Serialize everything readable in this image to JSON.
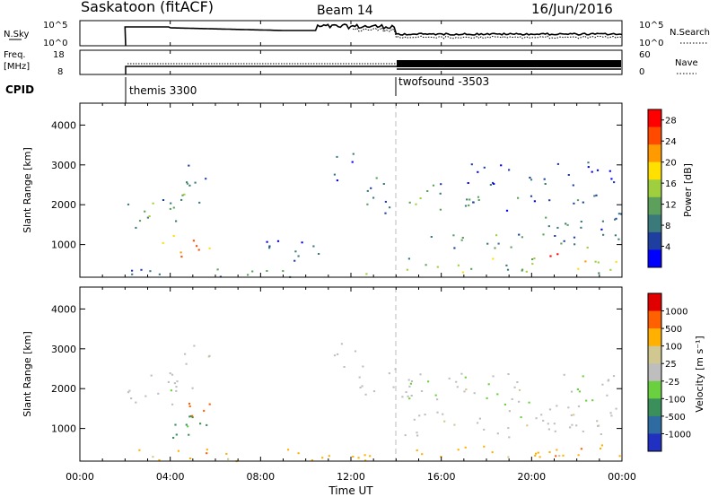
{
  "header": {
    "site": "Saskatoon (fitACF)",
    "beam": "Beam 14",
    "date": "16/Jun/2016"
  },
  "noise_panel": {
    "left_label": "N.Sky",
    "left_ticks": [
      "10^5",
      "10^0"
    ],
    "right_ticks": [
      "10^5",
      "10^0"
    ],
    "right_label": "N.Search"
  },
  "freq_panel": {
    "left_label_line1": "Freq.",
    "left_label_line2": "[MHz]",
    "left_ticks": [
      "18",
      "8"
    ],
    "right_ticks": [
      "60",
      "0"
    ],
    "right_label": "Nave"
  },
  "cpid": {
    "label": "CPID",
    "programs": [
      {
        "name": "themis 3300",
        "start_hour": 2.0
      },
      {
        "name": "twofsound -3503",
        "start_hour": 14.0
      }
    ]
  },
  "x_axis": {
    "ticks": [
      "00:00",
      "04:00",
      "08:00",
      "12:00",
      "16:00",
      "20:00",
      "00:00"
    ],
    "title": "Time UT"
  },
  "colors": {
    "power": [
      "#0000ff",
      "#1f3fa0",
      "#3a7a7a",
      "#5ca05c",
      "#9fcf3f",
      "#ffe000",
      "#ff9a00",
      "#ff4a00",
      "#ff0000"
    ],
    "velocity": [
      "#2030c0",
      "#2e6ba0",
      "#3a8f5a",
      "#6ad040",
      "#bebebe",
      "#d0c890",
      "#ffb000",
      "#ff6000",
      "#e00000"
    ]
  },
  "chart_data": [
    {
      "type": "heatmap",
      "panel": "power",
      "ylabel": "Slant Range [km]",
      "yticks": [
        "1000",
        "2000",
        "3000",
        "4000"
      ],
      "ylim": [
        180,
        4550
      ],
      "xlim_hours": [
        0,
        24
      ],
      "colorbar": {
        "label": "Power [dB]",
        "ticks": [
          "4",
          "8",
          "12",
          "16",
          "20",
          "24",
          "28"
        ],
        "range": [
          0,
          30
        ]
      },
      "regions": [
        {
          "t0": 2.0,
          "t1": 4.3,
          "r0": 1400,
          "r1": 2100,
          "level": 12
        },
        {
          "t0": 3.0,
          "t1": 4.8,
          "r0": 1900,
          "r1": 2400,
          "level": 10
        },
        {
          "t0": 4.0,
          "t1": 5.3,
          "r0": 2000,
          "r1": 2600,
          "level": 8
        },
        {
          "t0": 4.6,
          "t1": 5.9,
          "r0": 2500,
          "r1": 3100,
          "level": 6
        },
        {
          "t0": 3.4,
          "t1": 5.8,
          "r0": 700,
          "r1": 1300,
          "level": 22
        },
        {
          "t0": 2.2,
          "t1": 14.0,
          "r0": 200,
          "r1": 400,
          "level": 10
        },
        {
          "t0": 7.8,
          "t1": 10.8,
          "r0": 600,
          "r1": 1200,
          "level": 6
        },
        {
          "t0": 11.0,
          "t1": 12.2,
          "r0": 2500,
          "r1": 3300,
          "level": 6
        },
        {
          "t0": 12.2,
          "t1": 14.0,
          "r0": 1800,
          "r1": 2700,
          "level": 8
        },
        {
          "t0": 14.2,
          "t1": 16.0,
          "r0": 1800,
          "r1": 2600,
          "level": 10
        },
        {
          "t0": 14.2,
          "t1": 24.0,
          "r0": 900,
          "r1": 1300,
          "level": 10
        },
        {
          "t0": 14.2,
          "t1": 24.0,
          "r0": 300,
          "r1": 700,
          "level": 14
        },
        {
          "t0": 17.0,
          "t1": 20.5,
          "r0": 1800,
          "r1": 2400,
          "level": 8
        },
        {
          "t0": 20.5,
          "t1": 24.0,
          "r0": 1400,
          "r1": 2400,
          "level": 8
        },
        {
          "t0": 20.5,
          "t1": 22.5,
          "r0": 500,
          "r1": 800,
          "level": 24
        },
        {
          "t0": 17.0,
          "t1": 24.0,
          "r0": 2500,
          "r1": 3100,
          "level": 4
        }
      ]
    },
    {
      "type": "heatmap",
      "panel": "velocity",
      "ylabel": "Slant Range [km]",
      "yticks": [
        "1000",
        "2000",
        "3000",
        "4000"
      ],
      "ylim": [
        180,
        4550
      ],
      "xlim_hours": [
        0,
        24
      ],
      "colorbar": {
        "label": "Velocity [m s⁻¹]",
        "ticks": [
          "1000",
          "500",
          "100",
          "25",
          "-25",
          "-100",
          "-500",
          "-1000"
        ]
      },
      "regions": [
        {
          "t0": 2.0,
          "t1": 4.3,
          "r0": 1400,
          "r1": 2100,
          "level": 4
        },
        {
          "t0": 3.0,
          "t1": 5.0,
          "r0": 1900,
          "r1": 2600,
          "level": 4
        },
        {
          "t0": 4.6,
          "t1": 5.9,
          "r0": 2500,
          "r1": 3200,
          "level": 4
        },
        {
          "t0": 3.4,
          "t1": 5.8,
          "r0": 700,
          "r1": 1500,
          "level": 2
        },
        {
          "t0": 4.8,
          "t1": 5.9,
          "r0": 900,
          "r1": 1700,
          "level": 7
        },
        {
          "t0": 2.2,
          "t1": 14.0,
          "r0": 200,
          "r1": 500,
          "level": 6
        },
        {
          "t0": 11.0,
          "t1": 12.2,
          "r0": 2500,
          "r1": 3300,
          "level": 4
        },
        {
          "t0": 12.2,
          "t1": 14.0,
          "r0": 1800,
          "r1": 2700,
          "level": 4
        },
        {
          "t0": 14.2,
          "t1": 24.0,
          "r0": 1200,
          "r1": 2400,
          "level": 4
        },
        {
          "t0": 14.2,
          "t1": 24.0,
          "r0": 800,
          "r1": 1200,
          "level": 4
        },
        {
          "t0": 14.2,
          "t1": 24.0,
          "r0": 200,
          "r1": 600,
          "level": 6
        },
        {
          "t0": 22.0,
          "t1": 23.0,
          "r0": 1700,
          "r1": 2100,
          "level": 3
        }
      ]
    }
  ]
}
